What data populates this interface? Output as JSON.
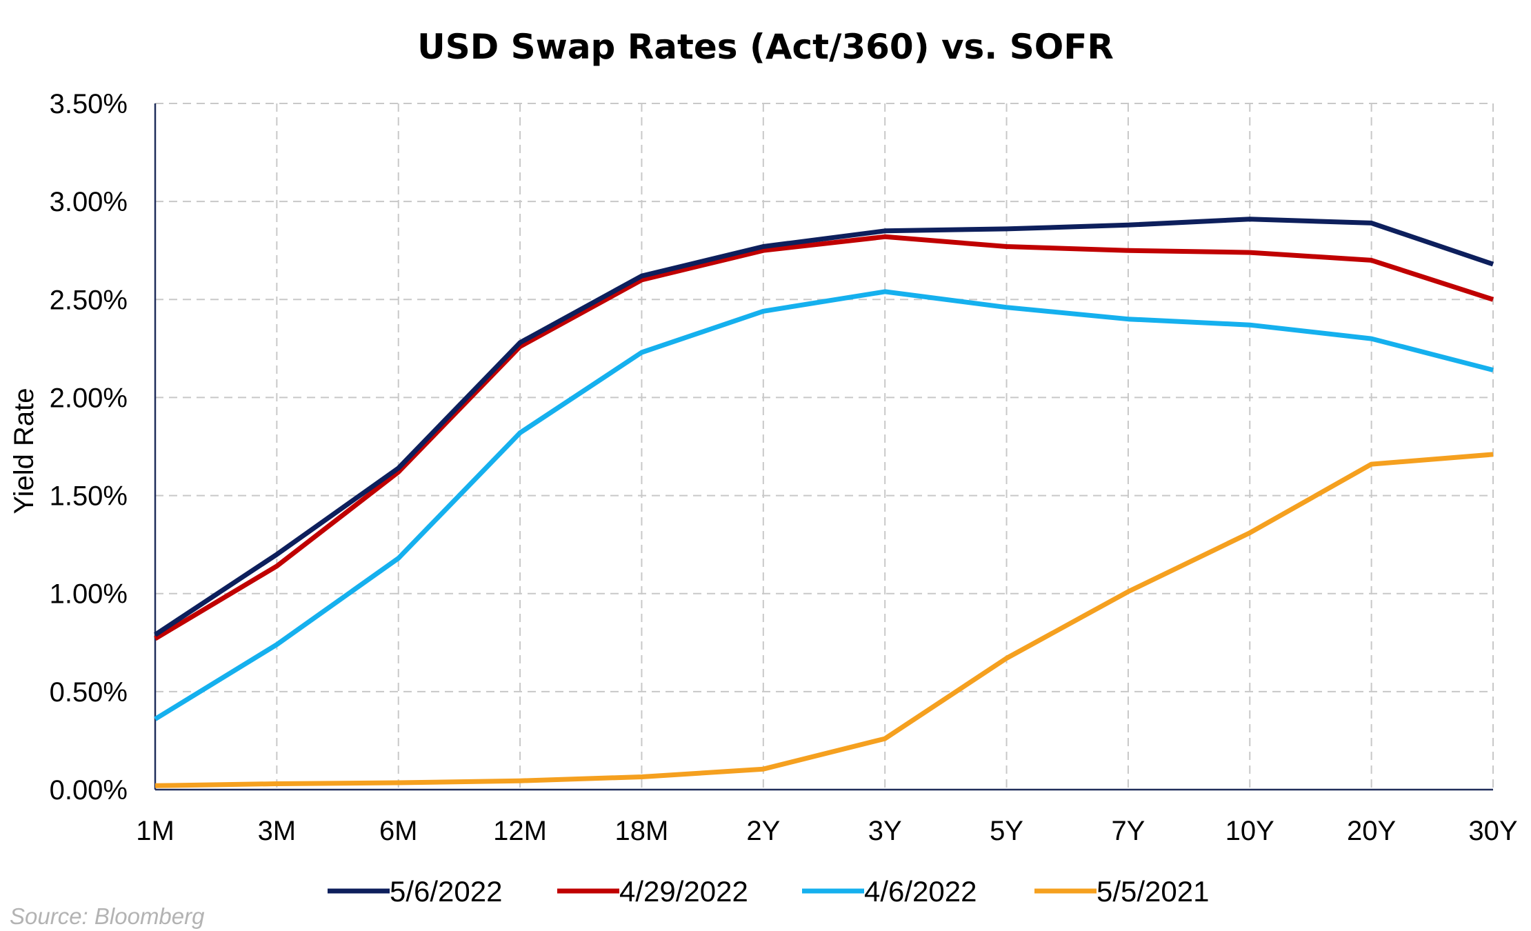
{
  "chart_data": {
    "type": "line",
    "title": "USD Swap Rates (Act/360) vs. SOFR",
    "xlabel": "",
    "ylabel": "Yield Rate",
    "categories": [
      "1M",
      "3M",
      "6M",
      "12M",
      "18M",
      "2Y",
      "3Y",
      "5Y",
      "7Y",
      "10Y",
      "20Y",
      "30Y"
    ],
    "ylim": [
      0,
      3.5
    ],
    "yticks": [
      0,
      0.5,
      1.0,
      1.5,
      2.0,
      2.5,
      3.0,
      3.5
    ],
    "ytick_labels": [
      "0.00%",
      "0.50%",
      "1.00%",
      "1.50%",
      "2.00%",
      "2.50%",
      "3.00%",
      "3.50%"
    ],
    "grid": true,
    "legend_position": "bottom",
    "series": [
      {
        "name": "5/6/2022",
        "color": "#0d1f5c",
        "values": [
          0.79,
          1.2,
          1.64,
          2.28,
          2.62,
          2.77,
          2.85,
          2.86,
          2.88,
          2.91,
          2.89,
          2.68
        ]
      },
      {
        "name": "4/29/2022",
        "color": "#c00000",
        "values": [
          0.77,
          1.14,
          1.62,
          2.26,
          2.6,
          2.75,
          2.82,
          2.77,
          2.75,
          2.74,
          2.7,
          2.5
        ]
      },
      {
        "name": "4/6/2022",
        "color": "#15b0ee",
        "values": [
          0.36,
          0.74,
          1.18,
          1.82,
          2.23,
          2.44,
          2.54,
          2.46,
          2.4,
          2.37,
          2.3,
          2.14
        ]
      },
      {
        "name": "5/5/2021",
        "color": "#f5a01f",
        "values": [
          0.02,
          0.03,
          0.035,
          0.045,
          0.065,
          0.105,
          0.26,
          0.67,
          1.01,
          1.31,
          1.66,
          1.71
        ]
      }
    ]
  },
  "source_note": "Source: Bloomberg"
}
